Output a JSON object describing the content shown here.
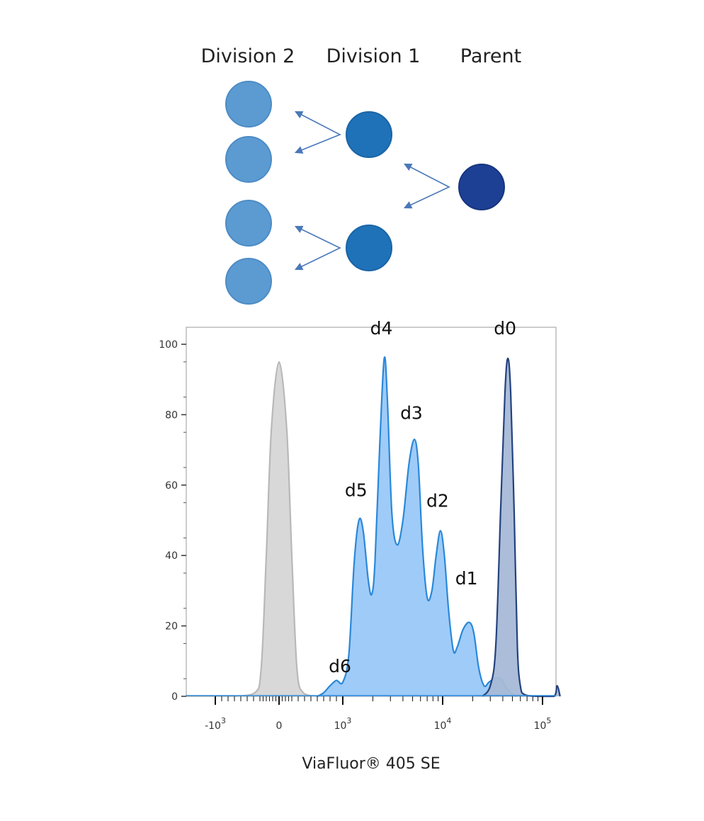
{
  "diagram": {
    "generations": [
      {
        "label": "Division 2",
        "cells": 4,
        "color": "#5b9bd1"
      },
      {
        "label": "Division 1",
        "cells": 2,
        "color": "#1f72b8"
      },
      {
        "label": "Parent",
        "cells": 1,
        "color": "#1d3f94"
      }
    ],
    "arrow_color": "#4a78b8"
  },
  "chart_data": {
    "type": "area",
    "xlabel": "ViaFluor® 405 SE",
    "ylabel": "",
    "ylim": [
      0,
      100
    ],
    "yticks": [
      "0",
      "20",
      "40",
      "60",
      "80",
      "100"
    ],
    "xticks": [
      {
        "value": -1000,
        "base": "-10",
        "exp": "3"
      },
      {
        "value": 0,
        "base": "0",
        "exp": ""
      },
      {
        "value": 1000,
        "base": "10",
        "exp": "3"
      },
      {
        "value": 10000,
        "base": "10",
        "exp": "4"
      },
      {
        "value": 100000,
        "base": "10",
        "exp": "5"
      }
    ],
    "x_scale": "biexponential",
    "grid": false,
    "series": [
      {
        "fill": "#d8d8d8",
        "stroke": "#b8b8b8",
        "points": [
          [
            -700,
            0
          ],
          [
            -380,
            1
          ],
          [
            -280,
            8
          ],
          [
            -200,
            40
          ],
          [
            -120,
            76
          ],
          [
            0,
            95
          ],
          [
            120,
            76
          ],
          [
            200,
            40
          ],
          [
            280,
            8
          ],
          [
            380,
            1
          ],
          [
            600,
            0
          ]
        ]
      },
      {
        "fill": "#9fcbf8",
        "stroke": "#2a88d8",
        "points": [
          [
            600,
            0
          ],
          [
            700,
            1
          ],
          [
            800,
            3
          ],
          [
            900,
            4.5
          ],
          [
            1000,
            4
          ],
          [
            1150,
            12
          ],
          [
            1300,
            38
          ],
          [
            1450,
            50
          ],
          [
            1600,
            47
          ],
          [
            1800,
            33
          ],
          [
            1950,
            29
          ],
          [
            2100,
            38
          ],
          [
            2350,
            72
          ],
          [
            2600,
            96
          ],
          [
            2800,
            84
          ],
          [
            3100,
            52
          ],
          [
            3500,
            43
          ],
          [
            4000,
            50
          ],
          [
            4600,
            66
          ],
          [
            5200,
            73
          ],
          [
            5700,
            66
          ],
          [
            6300,
            42
          ],
          [
            7000,
            28
          ],
          [
            7800,
            30
          ],
          [
            8600,
            40
          ],
          [
            9500,
            47
          ],
          [
            10400,
            40
          ],
          [
            11500,
            24
          ],
          [
            12800,
            13
          ],
          [
            14000,
            14
          ],
          [
            16000,
            19
          ],
          [
            18500,
            21
          ],
          [
            20500,
            18
          ],
          [
            23000,
            8
          ],
          [
            26000,
            3
          ],
          [
            29000,
            4
          ],
          [
            33000,
            5
          ],
          [
            38000,
            5
          ],
          [
            42000,
            3
          ],
          [
            48000,
            1
          ],
          [
            55000,
            0
          ]
        ]
      },
      {
        "fill": "#a6b9d6",
        "stroke": "#24427e",
        "points": [
          [
            25000,
            0
          ],
          [
            30000,
            3
          ],
          [
            34000,
            14
          ],
          [
            38000,
            52
          ],
          [
            42000,
            86
          ],
          [
            45000,
            96
          ],
          [
            48000,
            86
          ],
          [
            52000,
            52
          ],
          [
            56000,
            14
          ],
          [
            60000,
            3
          ],
          [
            66000,
            0.5
          ],
          [
            90000,
            0
          ],
          [
            130000,
            0
          ],
          [
            140000,
            3
          ],
          [
            150000,
            0
          ]
        ]
      }
    ],
    "annotations": [
      {
        "text": "d6",
        "x": 1000,
        "y": 6
      },
      {
        "text": "d5",
        "x": 1450,
        "y": 56
      },
      {
        "text": "d4",
        "x": 2600,
        "y": 102
      },
      {
        "text": "d3",
        "x": 5200,
        "y": 78
      },
      {
        "text": "d2",
        "x": 9500,
        "y": 53
      },
      {
        "text": "d1",
        "x": 18500,
        "y": 31
      },
      {
        "text": "d0",
        "x": 45000,
        "y": 102
      }
    ]
  }
}
